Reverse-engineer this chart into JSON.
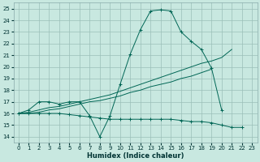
{
  "xlabel": "Humidex (Indice chaleur)",
  "xlim": [
    -0.5,
    23.5
  ],
  "ylim": [
    13.5,
    25.5
  ],
  "xticks": [
    0,
    1,
    2,
    3,
    4,
    5,
    6,
    7,
    8,
    9,
    10,
    11,
    12,
    13,
    14,
    15,
    16,
    17,
    18,
    19,
    20,
    21,
    22,
    23
  ],
  "yticks": [
    14,
    15,
    16,
    17,
    18,
    19,
    20,
    21,
    22,
    23,
    24,
    25
  ],
  "bg_color": "#c8e8e0",
  "grid_color": "#9bbfb8",
  "line_color": "#006655",
  "lines": [
    {
      "x": [
        0,
        1,
        2,
        3,
        4,
        5,
        6,
        7,
        8,
        9,
        10,
        11,
        12,
        13,
        14,
        15,
        16,
        17,
        18,
        19,
        20
      ],
      "y": [
        16.0,
        16.3,
        17.0,
        17.0,
        16.8,
        17.0,
        17.0,
        15.8,
        14.0,
        15.8,
        18.5,
        21.1,
        23.2,
        24.8,
        24.9,
        24.8,
        23.0,
        22.2,
        21.5,
        19.9,
        16.3
      ],
      "marker": "+"
    },
    {
      "x": [
        0,
        1,
        2,
        3,
        4,
        5,
        6,
        7,
        8,
        9,
        10,
        11,
        12,
        13,
        14,
        15,
        16,
        17,
        18,
        19,
        20,
        21
      ],
      "y": [
        16.0,
        16.1,
        16.3,
        16.5,
        16.6,
        16.8,
        17.0,
        17.2,
        17.4,
        17.6,
        17.9,
        18.2,
        18.5,
        18.8,
        19.1,
        19.4,
        19.7,
        20.0,
        20.3,
        20.5,
        20.8,
        21.5
      ],
      "marker": null
    },
    {
      "x": [
        0,
        1,
        2,
        3,
        4,
        5,
        6,
        7,
        8,
        9,
        10,
        11,
        12,
        13,
        14,
        15,
        16,
        17,
        18,
        19
      ],
      "y": [
        16.0,
        16.0,
        16.1,
        16.3,
        16.4,
        16.6,
        16.8,
        17.0,
        17.1,
        17.3,
        17.5,
        17.8,
        18.0,
        18.3,
        18.5,
        18.7,
        19.0,
        19.2,
        19.5,
        19.8
      ],
      "marker": null
    },
    {
      "x": [
        0,
        1,
        2,
        3,
        4,
        5,
        6,
        7,
        8,
        9,
        10,
        11,
        12,
        13,
        14,
        15,
        16,
        17,
        18,
        19,
        20,
        21,
        22
      ],
      "y": [
        16.0,
        16.0,
        16.0,
        16.0,
        16.0,
        15.9,
        15.8,
        15.7,
        15.6,
        15.5,
        15.5,
        15.5,
        15.5,
        15.5,
        15.5,
        15.5,
        15.4,
        15.3,
        15.3,
        15.2,
        15.0,
        14.8,
        14.8
      ],
      "marker": "+"
    }
  ]
}
